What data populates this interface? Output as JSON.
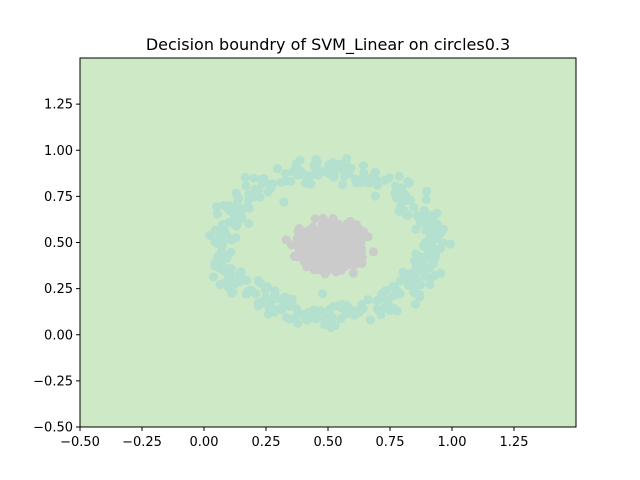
{
  "chart_data": {
    "type": "scatter",
    "title": "Decision boundry of SVM_Linear on circles0.3",
    "xlabel": "",
    "ylabel": "",
    "xlim": [
      -0.5,
      1.5
    ],
    "ylim": [
      -0.5,
      1.5
    ],
    "x_ticks": [
      -0.5,
      -0.25,
      0.0,
      0.25,
      0.5,
      0.75,
      1.0,
      1.25
    ],
    "x_tick_labels": [
      "−0.50",
      "−0.25",
      "0.00",
      "0.25",
      "0.50",
      "0.75",
      "1.00",
      "1.25"
    ],
    "y_ticks": [
      -0.5,
      -0.25,
      0.0,
      0.25,
      0.5,
      0.75,
      1.0,
      1.25
    ],
    "y_tick_labels": [
      "−0.50",
      "−0.25",
      "0.00",
      "0.25",
      "0.50",
      "0.75",
      "1.00",
      "1.25"
    ],
    "grid": false,
    "background_region": {
      "color": "#cde9c5"
    },
    "series": [
      {
        "class": "outer",
        "color": "#b3e0cf",
        "center": [
          0.5,
          0.5
        ],
        "radius_x": 0.42,
        "radius_y": 0.39,
        "spread": 0.035,
        "n_points": 360
      },
      {
        "class": "inner",
        "color": "#cbcbcb",
        "center": [
          0.52,
          0.48
        ],
        "radius_x": 0.12,
        "radius_y": 0.11,
        "spread": 0.08,
        "n_points": 360
      }
    ]
  }
}
